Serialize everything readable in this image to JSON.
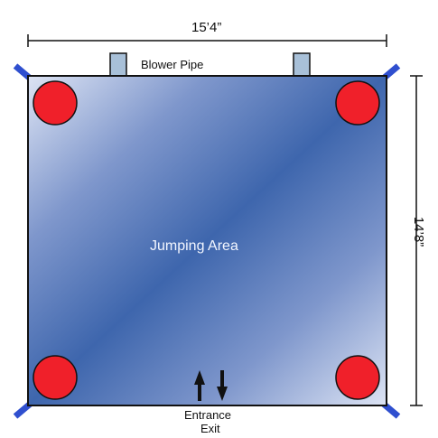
{
  "diagram": {
    "width_dimension": "15’4”",
    "height_dimension": "14’8”",
    "blower_label": "Blower Pipe",
    "area_label": "Jumping Area",
    "entrance_label": "Entrance",
    "exit_label": "Exit",
    "colors": {
      "area_light": "#dde4f4",
      "area_dark": "#3e66ad",
      "post": "#f0202a",
      "stake": "#2f4fcf",
      "pipe": "#a8c0d8",
      "outline": "#111111"
    }
  }
}
